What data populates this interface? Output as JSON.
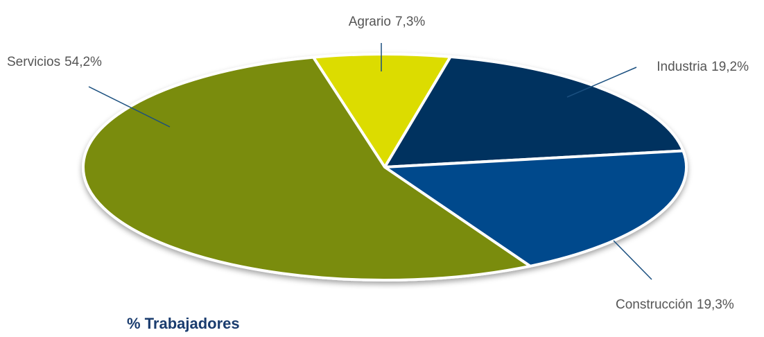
{
  "chart_data": {
    "type": "pie",
    "title": "% Trabajadores",
    "categories": [
      "Agrario",
      "Industria",
      "Construcción",
      "Servicios"
    ],
    "values": [
      7.3,
      19.2,
      19.3,
      54.2
    ],
    "value_labels": [
      "7,3%",
      "19,2%",
      "19,3%",
      "54,2%"
    ],
    "colors": [
      "#dcdc00",
      "#00305f",
      "#004a8c",
      "#7a8c08"
    ]
  }
}
